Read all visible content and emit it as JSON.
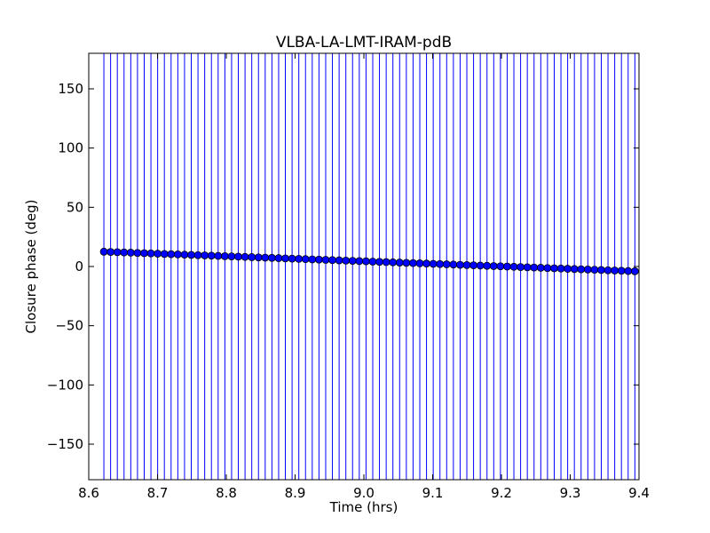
{
  "chart_data": {
    "type": "scatter",
    "title": "VLBA-LA-LMT-IRAM-pdB",
    "xlabel": "Time (hrs)",
    "ylabel": "Closure phase (deg)",
    "xlim": [
      8.6,
      9.4
    ],
    "ylim": [
      -180,
      180
    ],
    "xticks": [
      "8.6",
      "8.7",
      "8.8",
      "8.9",
      "9.0",
      "9.1",
      "9.2",
      "9.3",
      "9.4"
    ],
    "yticks": [
      "−150",
      "−100",
      "−50",
      "0",
      "50",
      "100",
      "150"
    ],
    "grid": false,
    "colors": {
      "marker": "#0000ff",
      "errorbar": "#0000ff"
    },
    "series": [
      {
        "x_start": 8.622,
        "x_end": 9.394,
        "y_start": 12.5,
        "y_end": -4.0,
        "n_points": 80,
        "error_low": -180,
        "error_high": 180
      }
    ]
  }
}
